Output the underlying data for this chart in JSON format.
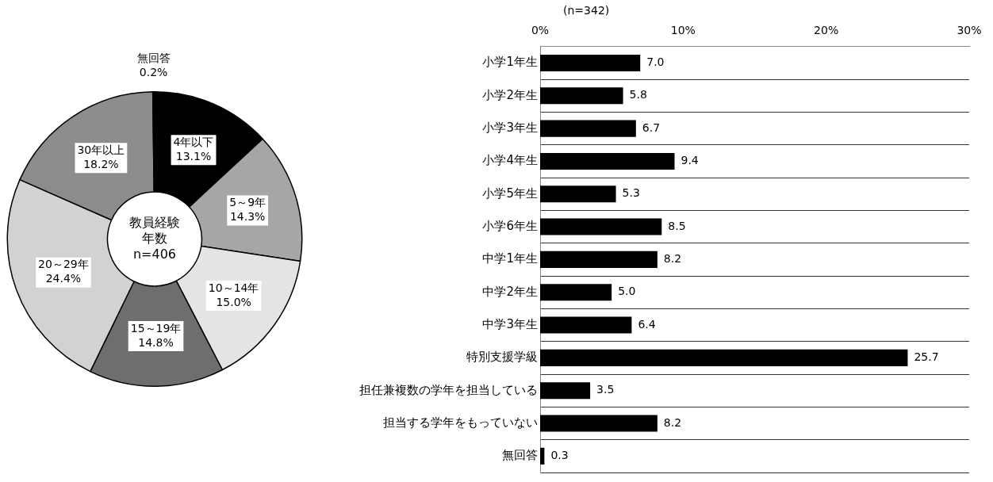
{
  "chart_data": [
    {
      "type": "donut",
      "title": "教員経験年数",
      "subtitle": "n=406",
      "categories": [
        "4年以下",
        "5～9年",
        "10～14年",
        "15～19年",
        "20～29年",
        "30年以上",
        "無回答"
      ],
      "values": [
        13.1,
        14.3,
        15.0,
        14.8,
        24.4,
        18.2,
        0.2
      ],
      "colors": [
        "#000000",
        "#a6a6a6",
        "#e4e4e4",
        "#6e6e6e",
        "#d2d2d2",
        "#8c8c8c",
        "#000000"
      ],
      "value_labels": [
        "13.1%",
        "14.3%",
        "15.0%",
        "14.8%",
        "24.4%",
        "18.2%",
        "0.2%"
      ],
      "legend": false
    },
    {
      "type": "bar",
      "orientation": "horizontal",
      "annotations": [
        "(n=342)"
      ],
      "categories": [
        "小学1年生",
        "小学2年生",
        "小学3年生",
        "小学4年生",
        "小学5年生",
        "小学6年生",
        "中学1年生",
        "中学2年生",
        "中学3年生",
        "特別支援学級",
        "担任兼複数の学年を担当している",
        "担当する学年をもっていない",
        "無回答"
      ],
      "values": [
        7.0,
        5.8,
        6.7,
        9.4,
        5.3,
        8.5,
        8.2,
        5.0,
        6.4,
        25.7,
        3.5,
        8.2,
        0.3
      ],
      "color": "#000000",
      "value_labels": [
        "7.0",
        "5.8",
        "6.7",
        "9.4",
        "5.3",
        "8.5",
        "8.2",
        "5.0",
        "6.4",
        "25.7",
        "3.5",
        "8.2",
        "0.3"
      ],
      "xlim": [
        0,
        30
      ],
      "xticks": [
        {
          "value": 0,
          "label": "0%"
        },
        {
          "value": 10,
          "label": "10%"
        },
        {
          "value": 20,
          "label": "20%"
        },
        {
          "value": 30,
          "label": "30%"
        }
      ],
      "grid": "y",
      "legend": false
    }
  ]
}
